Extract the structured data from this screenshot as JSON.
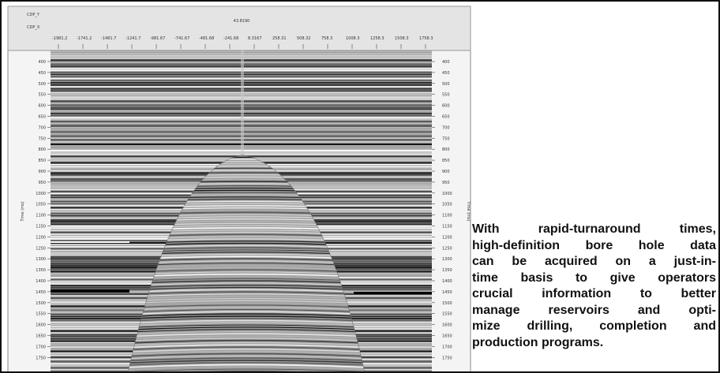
{
  "figure": {
    "header": {
      "cdp_y_label": "CDP_Y",
      "cdp_x_label": "CDP_X",
      "cdp_y_value": "43.8190"
    },
    "x_ticks": [
      "-1981.2",
      "-1741.2",
      "-1481.7",
      "-1241.7",
      "-981.67",
      "-741.67",
      "-481.68",
      "-241.68",
      "8.3167",
      "258.31",
      "508.32",
      "758.3",
      "1008.3",
      "1258.3",
      "1508.3",
      "1758.3"
    ],
    "y_ticks": [
      "400",
      "450",
      "500",
      "550",
      "600",
      "650",
      "700",
      "750",
      "800",
      "850",
      "900",
      "950",
      "1000",
      "1050",
      "1100",
      "1150",
      "1200",
      "1250",
      "1300",
      "1350",
      "1400",
      "1450",
      "1500",
      "1550",
      "1600",
      "1650",
      "1700",
      "1750"
    ],
    "y_axis_label": "Time (ms)"
  },
  "caption": {
    "lines": [
      "With rapid-turnaround times,",
      "high-definition bore hole data",
      "can be acquired on a just-in-",
      "time basis to give operators",
      "crucial information to better",
      "manage reservoirs and opti-",
      "mize drilling, completion and",
      "production programs."
    ]
  }
}
